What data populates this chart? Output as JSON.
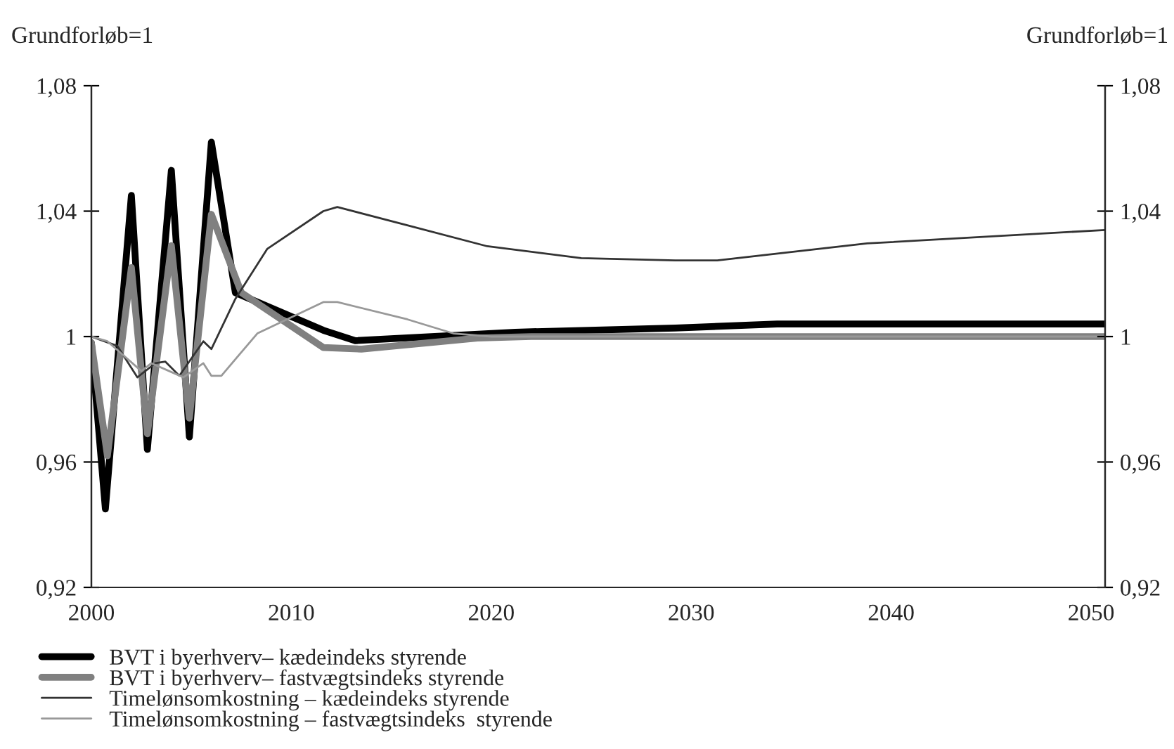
{
  "chart_data": {
    "type": "line",
    "ylabel": "Grundforløb=1",
    "y2label": "Grundforløb=1",
    "xlim": [
      2000,
      2050.7
    ],
    "xticks": [
      2000,
      2010,
      2020,
      2030,
      2040,
      2050
    ],
    "ylim": [
      0.92,
      1.08
    ],
    "yticks": [
      {
        "value": 0.92,
        "label": "0,92"
      },
      {
        "value": 0.96,
        "label": "0,96"
      },
      {
        "value": 1,
        "label": "1"
      },
      {
        "value": 1.04,
        "label": "1,04"
      },
      {
        "value": 1.08,
        "label": "1,08"
      }
    ],
    "y2lim": [
      0.92,
      1.08
    ],
    "y2ticks": [
      {
        "value": 0.92,
        "label": "0,92"
      },
      {
        "value": 0.96,
        "label": "0,96"
      },
      {
        "value": 1,
        "label": "1"
      },
      {
        "value": 1.04,
        "label": "1,04"
      },
      {
        "value": 1.08,
        "label": "1,08"
      }
    ],
    "grid": false,
    "legend": "bottom",
    "marker": "none",
    "line_style": "solid",
    "series": [
      {
        "name": "BVT i byerhverv– kædeindeks styrende",
        "color": "#000000",
        "x": [
          2000,
          2000.7,
          2002.0,
          2002.8,
          2004.0,
          2004.9,
          2006.0,
          2007.2,
          2011.6,
          2013.2,
          2021.2,
          2029.2,
          2034.3,
          2050.7
        ],
        "values": [
          0.998,
          0.945,
          1.045,
          0.964,
          1.053,
          0.968,
          1.062,
          1.014,
          1.002,
          0.9987,
          1.0014,
          1.0027,
          1.004,
          1.004
        ]
      },
      {
        "name": "BVT i byerhverv– fastvægtsindeks styrende",
        "color": "#808080",
        "x": [
          2000,
          2000.8,
          2002.0,
          2002.8,
          2004.0,
          2004.9,
          2006.0,
          2007.5,
          2011.6,
          2013.5,
          2019.3,
          2022,
          2050.7
        ],
        "values": [
          0.998,
          0.962,
          1.022,
          0.969,
          1.029,
          0.974,
          1.039,
          1.014,
          0.9965,
          0.996,
          0.9995,
          1.0,
          1.0
        ]
      },
      {
        "name": "Timelønsomkostning – kædeindeks styrende",
        "color": "#333333",
        "x": [
          2000,
          2001.3,
          2002.3,
          2003.2,
          2003.7,
          2004.4,
          2005.6,
          2006.0,
          2007.2,
          2008.8,
          2011.6,
          2012.3,
          2015.8,
          2019.8,
          2024.5,
          2029.2,
          2031.3,
          2038.8,
          2050.7
        ],
        "values": [
          1.0,
          0.997,
          0.987,
          0.9915,
          0.992,
          0.9875,
          0.9985,
          0.996,
          1.012,
          1.028,
          1.04,
          1.0413,
          1.0355,
          1.0288,
          1.025,
          1.0243,
          1.0243,
          1.0297,
          1.034
        ]
      },
      {
        "name": "Timelønsomkostning – fastvægtsindeks  styrende",
        "color": "#999999",
        "x": [
          2000,
          2000.8,
          2002.5,
          2003.0,
          2004.6,
          2005.6,
          2006.0,
          2006.5,
          2008.3,
          2011.6,
          2012.3,
          2015.8,
          2018.1,
          2020,
          2050.7
        ],
        "values": [
          1.0,
          0.9985,
          0.989,
          0.9915,
          0.987,
          0.9915,
          0.9875,
          0.9875,
          1.001,
          1.011,
          1.011,
          1.0055,
          1.001,
          1.0,
          1.0
        ]
      }
    ]
  }
}
